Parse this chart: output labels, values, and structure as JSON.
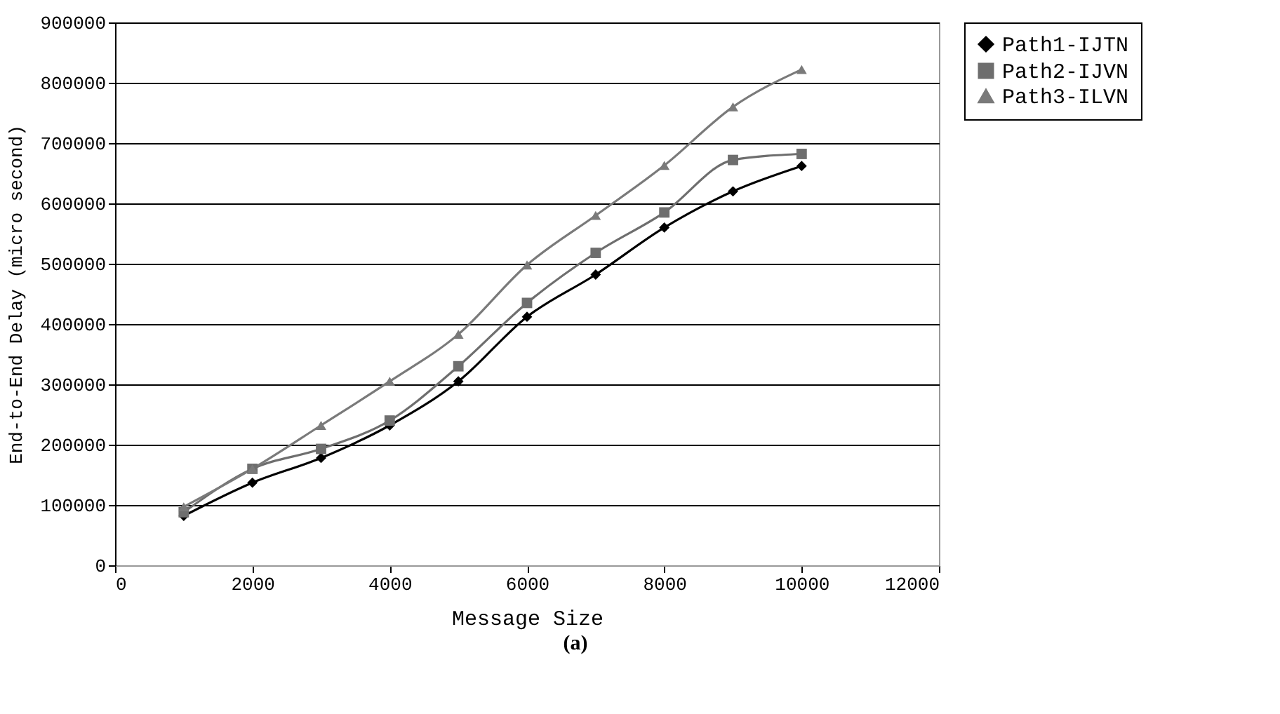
{
  "chart_data": {
    "type": "line",
    "xlabel": "Message Size",
    "ylabel": "End-to-End Delay (micro second)",
    "x": [
      1000,
      2000,
      3000,
      4000,
      5000,
      6000,
      7000,
      8000,
      9000,
      10000
    ],
    "series": [
      {
        "name": "Path1-IJTN",
        "color": "#000000",
        "marker": "diamond",
        "values": [
          82000,
          137000,
          178000,
          232000,
          305000,
          412000,
          482000,
          560000,
          620000,
          662000
        ]
      },
      {
        "name": "Path2-IJVN",
        "color": "#6e6e6e",
        "marker": "square",
        "values": [
          88000,
          160000,
          193000,
          240000,
          330000,
          435000,
          518000,
          585000,
          672000,
          682000
        ]
      },
      {
        "name": "Path3-ILVN",
        "color": "#7a7a7a",
        "marker": "triangle",
        "values": [
          97000,
          160000,
          232000,
          305000,
          383000,
          498000,
          580000,
          663000,
          760000,
          822000
        ]
      }
    ],
    "xlim": [
      0,
      12000
    ],
    "xticks": [
      0,
      2000,
      4000,
      6000,
      8000,
      10000,
      12000
    ],
    "ylim": [
      0,
      900000
    ],
    "yticks": [
      0,
      100000,
      200000,
      300000,
      400000,
      500000,
      600000,
      700000,
      800000,
      900000
    ],
    "grid": "y",
    "legend": "right",
    "annotations": [
      "(a)"
    ]
  }
}
